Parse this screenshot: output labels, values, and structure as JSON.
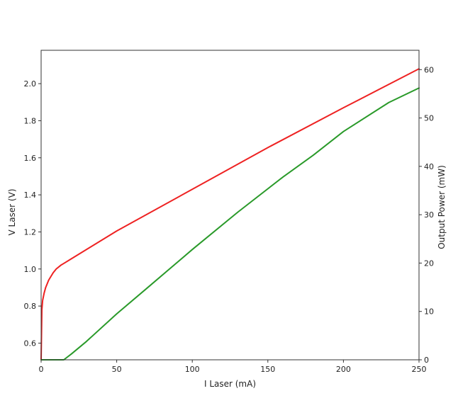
{
  "chart_data": {
    "type": "line",
    "title": "",
    "xlabel": "I Laser (mA)",
    "ylabel": "V Laser (V)",
    "y2label": "Output Power (mW)",
    "xlim": [
      0,
      250
    ],
    "ylim": [
      0.51,
      2.18
    ],
    "y2lim": [
      0,
      64
    ],
    "x_ticks": [
      0,
      50,
      100,
      150,
      200,
      250
    ],
    "y_ticks": [
      0.6,
      0.8,
      1.0,
      1.2,
      1.4,
      1.6,
      1.8,
      2.0
    ],
    "y2_ticks": [
      0,
      10,
      20,
      30,
      40,
      50,
      60
    ],
    "grid": false,
    "series": [
      {
        "axis": "left",
        "color": "#ee2222",
        "x": [
          0,
          0.5,
          1,
          2,
          3,
          5,
          8,
          10,
          13,
          15,
          20,
          50,
          100,
          150,
          200,
          250
        ],
        "y": [
          0.51,
          0.78,
          0.83,
          0.87,
          0.9,
          0.94,
          0.98,
          1.0,
          1.02,
          1.03,
          1.055,
          1.205,
          1.43,
          1.655,
          1.87,
          2.08
        ]
      },
      {
        "axis": "right",
        "color": "#2a9a2a",
        "x": [
          0,
          10,
          15,
          20,
          30,
          50,
          70,
          100,
          130,
          160,
          180,
          200,
          230,
          250
        ],
        "y": [
          0,
          0,
          0,
          1.2,
          3.8,
          9.5,
          14.8,
          22.8,
          30.5,
          37.8,
          42.3,
          47.2,
          53.2,
          56.2
        ]
      }
    ]
  }
}
